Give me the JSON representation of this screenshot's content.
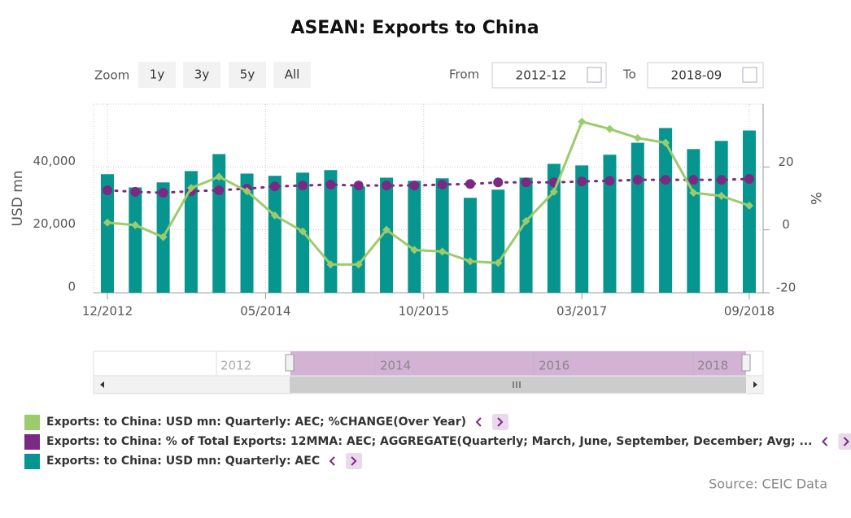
{
  "chart_data": {
    "type": "combo",
    "title": "ASEAN: Exports to China",
    "x": [
      "2012-12",
      "2013-03",
      "2013-06",
      "2013-09",
      "2013-12",
      "2014-03",
      "2014-06",
      "2014-09",
      "2014-12",
      "2015-03",
      "2015-06",
      "2015-09",
      "2015-12",
      "2016-03",
      "2016-06",
      "2016-09",
      "2016-12",
      "2017-03",
      "2017-06",
      "2017-09",
      "2017-12",
      "2018-03",
      "2018-06",
      "2018-09"
    ],
    "xlim": [
      "2012-12",
      "2018-09"
    ],
    "xticks": [
      {
        "value": "2012-12",
        "label": "12/2012"
      },
      {
        "value": "2014-05",
        "label": "05/2014"
      },
      {
        "value": "2015-10",
        "label": "10/2015"
      },
      {
        "value": "2017-03",
        "label": "03/2017"
      },
      {
        "value": "2018-09",
        "label": "09/2018"
      }
    ],
    "ylabel": "USD mn",
    "ylim": [
      0,
      60000
    ],
    "yticks": [
      0,
      {
        "value": 20000,
        "label": "20,000"
      },
      {
        "value": 40000,
        "label": "40,000"
      }
    ],
    "y2label": "%",
    "y2lim": [
      -20,
      40
    ],
    "y2ticks": [
      -20,
      0,
      20
    ],
    "grid": true,
    "series": [
      {
        "name": "Exports: to China: USD mn: Quarterly: AEC; %CHANGE(Over Year)",
        "type": "line",
        "axis": "y2",
        "color": "#9ccb6b",
        "values": [
          2.3,
          1.5,
          -2.3,
          13.3,
          16.9,
          12.3,
          4.6,
          -0.5,
          -11.0,
          -11.0,
          0,
          -6.4,
          -6.9,
          -10.0,
          -10.5,
          2.8,
          12.1,
          34.4,
          32.1,
          29.2,
          27.7,
          11.8,
          10.8,
          7.7
        ]
      },
      {
        "name": "Exports: to China: % of Total Exports: 12MMA: AEC; AGGREGATE(Quarterly; March, June, September, December; Avg; ...",
        "type": "dots",
        "axis": "y2",
        "color": "#7b2a83",
        "values": [
          12.6,
          12.1,
          11.8,
          12.3,
          12.6,
          13.1,
          13.8,
          14.1,
          14.4,
          14.1,
          14.1,
          14.1,
          14.4,
          14.6,
          15.1,
          15.1,
          15.1,
          15.4,
          15.6,
          15.9,
          15.9,
          15.9,
          15.9,
          16.2
        ]
      },
      {
        "name": "Exports: to China: USD mn: Quarterly: AEC",
        "type": "bar",
        "axis": "y",
        "color": "#07968f",
        "values": [
          37700,
          33500,
          35100,
          38700,
          44100,
          37900,
          37200,
          38200,
          39000,
          33800,
          36600,
          35600,
          36400,
          30200,
          32800,
          36600,
          41000,
          40500,
          43900,
          47700,
          52400,
          45700,
          48300,
          51600
        ]
      }
    ],
    "source": "Source: CEIC Data"
  },
  "controls": {
    "zoom": "Zoom",
    "buttons": [
      "1y",
      "3y",
      "5y",
      "All"
    ],
    "from": "From",
    "from_value": "2012-12",
    "to": "To",
    "to_value": "2018-09"
  },
  "navigator": {
    "labels": [
      "2012",
      "2014",
      "2016",
      "2018"
    ]
  }
}
